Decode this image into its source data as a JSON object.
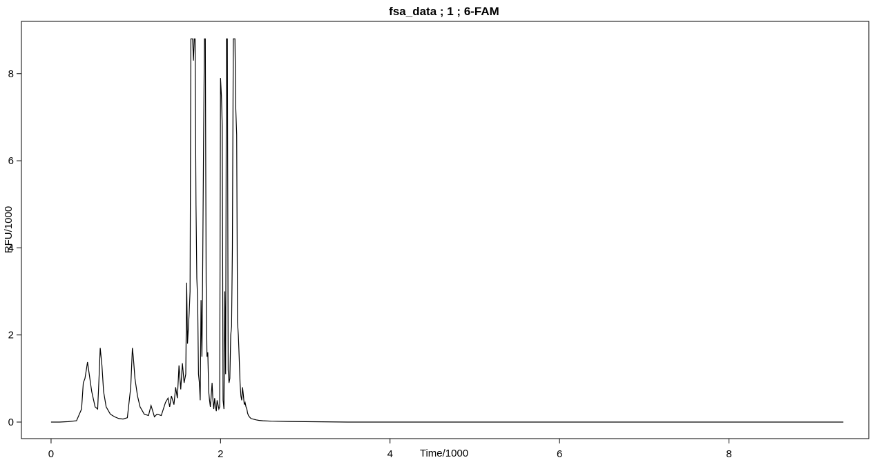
{
  "chart_data": {
    "type": "line",
    "title": "fsa_data ; 1 ; 6-FAM",
    "xlabel": "Time/1000",
    "ylabel": "RFU/1000",
    "xlim": [
      -0.35,
      9.65
    ],
    "ylim": [
      -0.38,
      9.2
    ],
    "x_ticks": [
      0,
      2,
      4,
      6,
      8
    ],
    "y_ticks": [
      0,
      2,
      4,
      6,
      8
    ],
    "x_tick_labels": [
      "0",
      "2",
      "4",
      "6",
      "8"
    ],
    "y_tick_labels": [
      "0",
      "2",
      "4",
      "6",
      "8"
    ],
    "grid": false,
    "legend": "none",
    "line_color": "#000000",
    "series": [
      {
        "x": [
          0.0,
          0.1,
          0.2,
          0.3,
          0.36,
          0.38,
          0.4,
          0.42,
          0.43,
          0.45,
          0.48,
          0.52,
          0.55,
          0.57,
          0.58,
          0.6,
          0.62,
          0.65,
          0.7,
          0.75,
          0.8,
          0.85,
          0.9,
          0.94,
          0.96,
          0.97,
          0.99,
          1.02,
          1.05,
          1.1,
          1.15,
          1.18,
          1.2,
          1.22,
          1.25,
          1.3,
          1.35,
          1.38,
          1.4,
          1.42,
          1.45,
          1.47,
          1.49,
          1.51,
          1.53,
          1.55,
          1.57,
          1.59,
          1.6,
          1.61,
          1.63,
          1.64,
          1.65,
          1.66,
          1.67,
          1.68,
          1.69,
          1.7,
          1.71,
          1.72,
          1.73,
          1.74,
          1.75,
          1.76,
          1.77,
          1.78,
          1.79,
          1.8,
          1.81,
          1.82,
          1.83,
          1.84,
          1.85,
          1.86,
          1.87,
          1.88,
          1.89,
          1.9,
          1.91,
          1.92,
          1.93,
          1.94,
          1.95,
          1.96,
          1.97,
          1.98,
          1.99,
          2.0,
          2.01,
          2.02,
          2.03,
          2.04,
          2.05,
          2.06,
          2.07,
          2.08,
          2.09,
          2.1,
          2.11,
          2.12,
          2.13,
          2.14,
          2.15,
          2.16,
          2.17,
          2.18,
          2.19,
          2.2,
          2.21,
          2.22,
          2.23,
          2.24,
          2.25,
          2.26,
          2.27,
          2.28,
          2.29,
          2.3,
          2.31,
          2.32,
          2.33,
          2.34,
          2.35,
          2.36,
          2.38,
          2.4,
          2.42,
          2.45,
          2.5,
          2.6,
          2.8,
          3.0,
          3.5,
          4.0,
          5.0,
          6.0,
          7.0,
          8.0,
          9.0,
          9.35
        ],
        "y": [
          0.0,
          0.0,
          0.01,
          0.03,
          0.3,
          0.9,
          1.0,
          1.25,
          1.38,
          1.1,
          0.7,
          0.35,
          0.3,
          1.2,
          1.7,
          1.3,
          0.7,
          0.35,
          0.18,
          0.12,
          0.08,
          0.07,
          0.1,
          0.8,
          1.7,
          1.5,
          1.0,
          0.6,
          0.35,
          0.18,
          0.15,
          0.38,
          0.25,
          0.12,
          0.18,
          0.15,
          0.45,
          0.55,
          0.35,
          0.6,
          0.4,
          0.8,
          0.55,
          1.3,
          0.75,
          1.35,
          0.9,
          1.1,
          3.2,
          1.8,
          2.5,
          3.0,
          8.8,
          8.8,
          8.8,
          8.3,
          8.8,
          8.8,
          5.0,
          3.3,
          2.8,
          1.1,
          0.9,
          0.5,
          2.8,
          1.5,
          3.8,
          6.5,
          8.8,
          8.8,
          3.2,
          1.5,
          1.6,
          0.7,
          0.5,
          0.35,
          0.6,
          0.9,
          0.5,
          0.3,
          0.55,
          0.35,
          0.25,
          0.5,
          0.4,
          0.3,
          0.35,
          7.9,
          7.5,
          6.8,
          0.5,
          0.3,
          3.0,
          1.1,
          8.8,
          8.8,
          1.2,
          0.9,
          1.0,
          2.0,
          2.2,
          4.0,
          8.8,
          8.8,
          8.8,
          7.2,
          6.6,
          2.3,
          2.0,
          1.5,
          0.9,
          0.6,
          0.5,
          0.8,
          0.6,
          0.4,
          0.45,
          0.35,
          0.3,
          0.2,
          0.15,
          0.12,
          0.1,
          0.08,
          0.07,
          0.06,
          0.05,
          0.04,
          0.03,
          0.02,
          0.015,
          0.01,
          0.0,
          0.0,
          0.0,
          0.0,
          0.0,
          0.0,
          0.0,
          0.0
        ]
      }
    ]
  }
}
